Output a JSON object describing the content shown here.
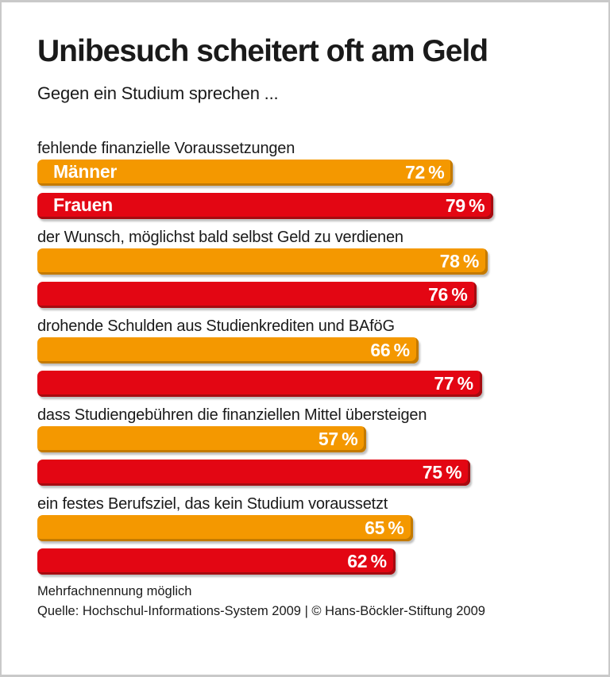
{
  "header": {
    "title": "Unibesuch scheitert oft am Geld",
    "subtitle": "Gegen ein Studium sprechen ..."
  },
  "colors": {
    "maenner_bar": "#F49800",
    "maenner_edge": "#C47A00",
    "frauen_bar": "#E30613",
    "frauen_edge": "#A60B10",
    "text": "#1A1A1A",
    "bar_label_text": "#FFFFFF",
    "frame_border": "#C9C9C9"
  },
  "chart_data": {
    "type": "bar",
    "orientation": "horizontal",
    "title": "Unibesuch scheitert oft am Geld",
    "subtitle": "Gegen ein Studium sprechen ...",
    "unit": "%",
    "xlim": [
      0,
      100
    ],
    "grid": false,
    "legend_position": "inside-first-bars",
    "series": [
      "Männer",
      "Frauen"
    ],
    "categories": [
      "fehlende finanzielle Voraussetzungen",
      "der Wunsch, möglichst bald selbst Geld zu verdienen",
      "drohende Schulden aus Studienkrediten und BAföG",
      "dass Studiengebühren die finanziellen Mittel übersteigen",
      "ein festes Berufsziel, das kein Studium voraussetzt"
    ],
    "values": [
      [
        72,
        79
      ],
      [
        78,
        76
      ],
      [
        66,
        77
      ],
      [
        57,
        75
      ],
      [
        65,
        62
      ]
    ],
    "value_labels": "inside-right"
  },
  "footer": {
    "note": "Mehrfachnennung möglich",
    "source": "Quelle: Hochschul-Informations-System 2009 | © Hans-Böckler-Stiftung 2009"
  }
}
